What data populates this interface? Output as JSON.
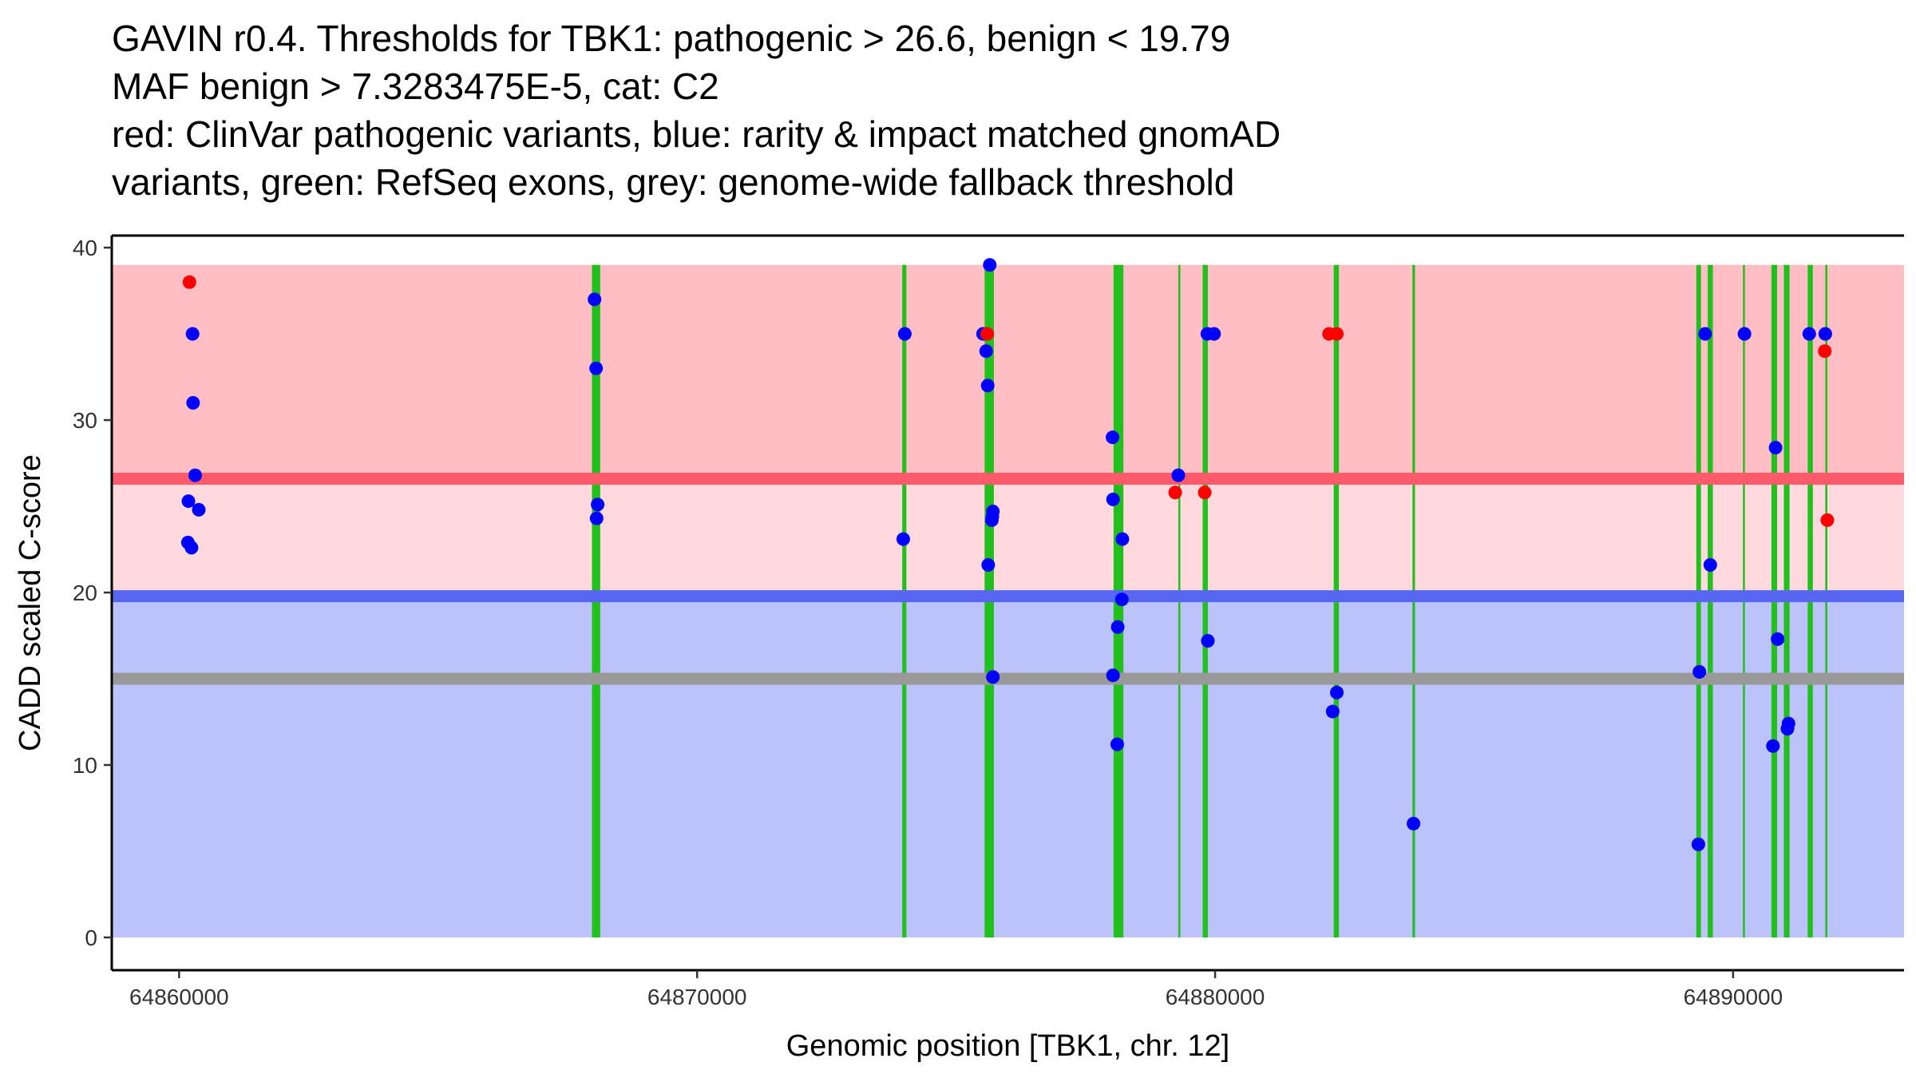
{
  "chart_data": {
    "type": "scatter",
    "title_lines": [
      "GAVIN r0.4. Thresholds for TBK1: pathogenic > 26.6, benign < 19.79",
      "MAF benign > 7.3283475E-5, cat: C2",
      "red: ClinVar pathogenic variants, blue: rarity & impact matched gnomAD",
      "variants, green: RefSeq exons, grey: genome-wide fallback threshold"
    ],
    "xlabel": "Genomic position [TBK1, chr. 12]",
    "ylabel": "CADD scaled C-score",
    "xlim": [
      64858700,
      64893300
    ],
    "ylim": [
      -1.9,
      40.7
    ],
    "x_ticks": [
      {
        "value": 64860000,
        "label": "64860000"
      },
      {
        "value": 64870000,
        "label": "64870000"
      },
      {
        "value": 64880000,
        "label": "64880000"
      },
      {
        "value": 64890000,
        "label": "64890000"
      }
    ],
    "y_ticks": [
      {
        "value": 0,
        "label": "0"
      },
      {
        "value": 10,
        "label": "10"
      },
      {
        "value": 20,
        "label": "20"
      },
      {
        "value": 30,
        "label": "30"
      },
      {
        "value": 40,
        "label": "40"
      }
    ],
    "colors": {
      "pathogenic_zone": "#ffbec4",
      "vus_zone": "#ffd9dd",
      "benign_zone": "#bcc2fa",
      "pathogenic_line": "#fd5a6b",
      "benign_line": "#5767f2",
      "fallback_line": "#999999",
      "exon": "#22c01d",
      "clinvar": "#ff0000",
      "gnomad": "#0000ff"
    },
    "regions": {
      "x_start": 64858700,
      "x_end": 64893300,
      "top": 39,
      "bottom": 0,
      "pathogenic_threshold": 26.6,
      "benign_threshold": 19.79,
      "fallback_threshold": 15
    },
    "exons": [
      {
        "start": 64867970,
        "end": 64868130
      },
      {
        "start": 64873960,
        "end": 64874040
      },
      {
        "start": 64875550,
        "end": 64875730
      },
      {
        "start": 64878040,
        "end": 64878230
      },
      {
        "start": 64879290,
        "end": 64879320
      },
      {
        "start": 64879760,
        "end": 64879860
      },
      {
        "start": 64882290,
        "end": 64882390
      },
      {
        "start": 64883810,
        "end": 64883860
      },
      {
        "start": 64889290,
        "end": 64889380
      },
      {
        "start": 64889510,
        "end": 64889610
      },
      {
        "start": 64890190,
        "end": 64890220
      },
      {
        "start": 64890740,
        "end": 64890850
      },
      {
        "start": 64890980,
        "end": 64891090
      },
      {
        "start": 64891440,
        "end": 64891540
      },
      {
        "start": 64891780,
        "end": 64891820
      }
    ],
    "series": [
      {
        "name": "ClinVar pathogenic variants",
        "color": "#ff0000",
        "points": [
          [
            64860200,
            38
          ],
          [
            64875600,
            35
          ],
          [
            64879230,
            25.8
          ],
          [
            64879800,
            25.8
          ],
          [
            64882200,
            35
          ],
          [
            64882350,
            35
          ],
          [
            64891770,
            34
          ],
          [
            64891820,
            24.2
          ]
        ]
      },
      {
        "name": "rarity & impact matched gnomAD variants",
        "color": "#0000ff",
        "points": [
          [
            64860260,
            35
          ],
          [
            64860270,
            31
          ],
          [
            64860310,
            26.8
          ],
          [
            64860180,
            25.3
          ],
          [
            64860380,
            24.8
          ],
          [
            64860170,
            22.9
          ],
          [
            64860240,
            22.6
          ],
          [
            64868020,
            37
          ],
          [
            64868050,
            33
          ],
          [
            64868080,
            25.1
          ],
          [
            64868060,
            24.3
          ],
          [
            64874010,
            35
          ],
          [
            64873980,
            23.1
          ],
          [
            64875650,
            39
          ],
          [
            64875520,
            35
          ],
          [
            64875580,
            34
          ],
          [
            64875610,
            32
          ],
          [
            64875710,
            24.7
          ],
          [
            64875700,
            24.4
          ],
          [
            64875690,
            24.2
          ],
          [
            64875620,
            21.6
          ],
          [
            64875710,
            15.1
          ],
          [
            64878020,
            29
          ],
          [
            64878030,
            25.4
          ],
          [
            64878210,
            23.1
          ],
          [
            64878200,
            19.6
          ],
          [
            64878120,
            18
          ],
          [
            64878030,
            15.2
          ],
          [
            64878110,
            11.2
          ],
          [
            64879290,
            26.8
          ],
          [
            64879850,
            35
          ],
          [
            64879980,
            35
          ],
          [
            64879860,
            17.2
          ],
          [
            64882350,
            14.2
          ],
          [
            64882270,
            13.1
          ],
          [
            64883830,
            6.6
          ],
          [
            64889350,
            15.4
          ],
          [
            64889330,
            5.4
          ],
          [
            64889460,
            35
          ],
          [
            64889560,
            21.6
          ],
          [
            64890220,
            35
          ],
          [
            64890820,
            28.4
          ],
          [
            64890860,
            17.3
          ],
          [
            64890770,
            11.1
          ],
          [
            64891070,
            12.4
          ],
          [
            64891050,
            12.1
          ],
          [
            64891470,
            35
          ],
          [
            64891780,
            35
          ]
        ]
      }
    ]
  }
}
